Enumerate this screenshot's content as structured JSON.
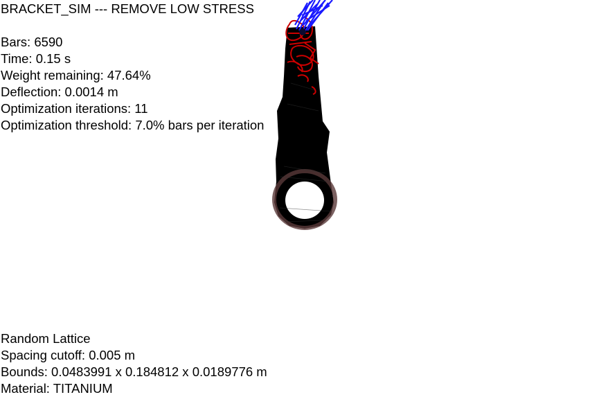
{
  "title": "BRACKET_SIM --- REMOVE LOW STRESS",
  "stats": {
    "bars": "Bars: 6590",
    "time": "Time: 0.15 s",
    "weight_remaining": "Weight remaining: 47.64%",
    "deflection": "Deflection: 0.0014 m",
    "iterations": "Optimization iterations: 11",
    "threshold": "Optimization threshold: 7.0% bars per iteration"
  },
  "lattice_info": {
    "lattice_type": "Random Lattice",
    "spacing": "Spacing cutoff: 0.005 m",
    "bounds": "Bounds: 0.0483991 x 0.184812 x 0.0189776 m",
    "material": "Material: TITANIUM"
  },
  "colors": {
    "background": "#ffffff",
    "structure": "#000000",
    "high_stress": "#cc0000",
    "load_vectors": "#1a1aff",
    "ring_tint": "#5a3a3a"
  }
}
